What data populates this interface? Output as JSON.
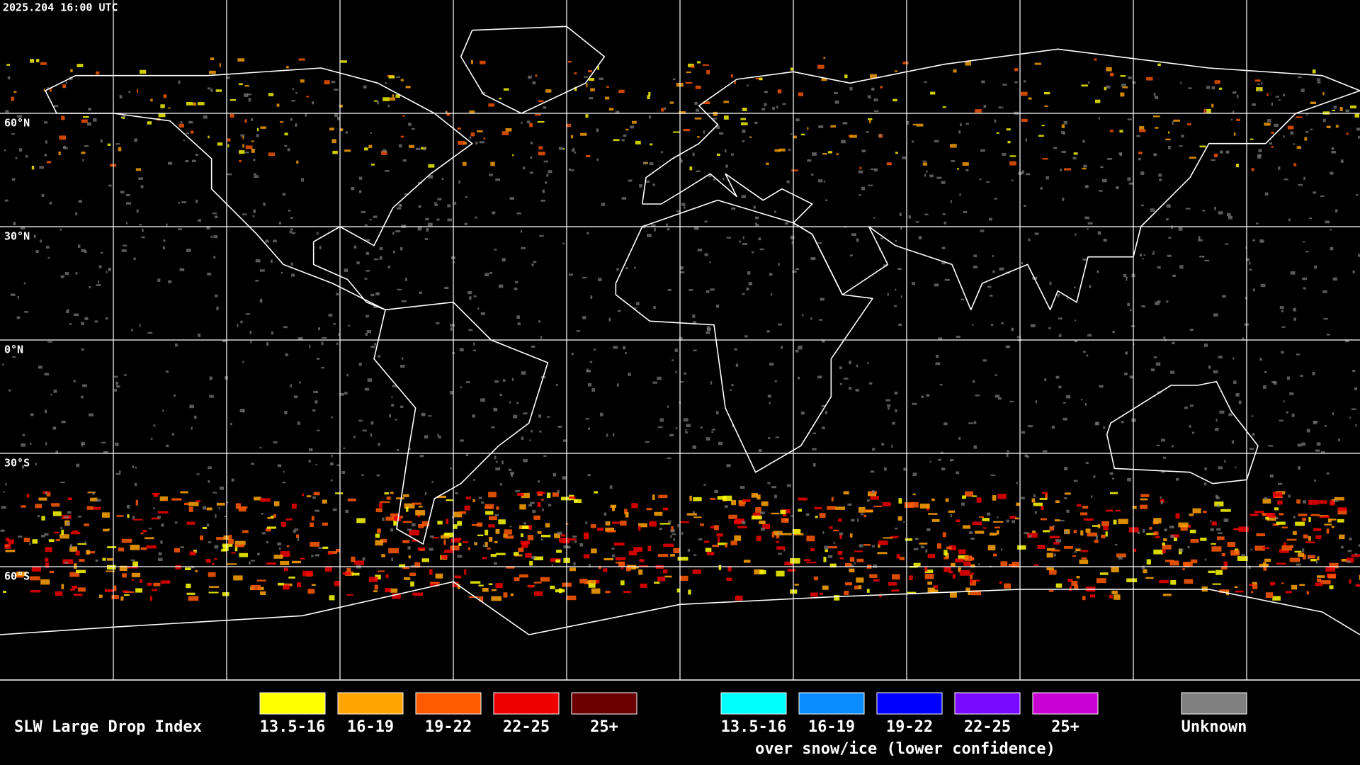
{
  "header": {
    "timestamp": "2025.204 16:00 UTC"
  },
  "map": {
    "lat_labels": [
      "60°N",
      "30°N",
      "0°N",
      "30°S",
      "60°S"
    ]
  },
  "legend": {
    "title": "SLW Large Drop Index",
    "items": [
      {
        "label": "13.5-16",
        "color": "#ffff00"
      },
      {
        "label": "16-19",
        "color": "#ffa500"
      },
      {
        "label": "19-22",
        "color": "#ff5a00"
      },
      {
        "label": "22-25",
        "color": "#ee0000"
      },
      {
        "label": "25+",
        "color": "#6a0000"
      }
    ],
    "snow_items": [
      {
        "label": "13.5-16",
        "color": "#00ffff"
      },
      {
        "label": "16-19",
        "color": "#0a8cff"
      },
      {
        "label": "19-22",
        "color": "#0000ff"
      },
      {
        "label": "22-25",
        "color": "#7a0aff"
      },
      {
        "label": "25+",
        "color": "#c800d2"
      }
    ],
    "snow_caption": "over snow/ice (lower confidence)",
    "unknown": {
      "label": "Unknown",
      "color": "#808080"
    }
  }
}
